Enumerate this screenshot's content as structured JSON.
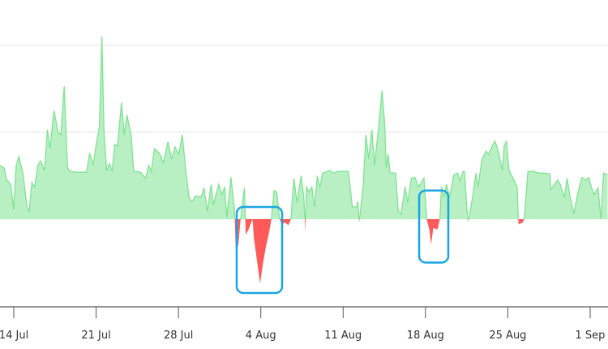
{
  "chart_data": {
    "type": "area",
    "title": "",
    "xlabel": "",
    "ylabel": "",
    "x_unit": "days since 14 Jul",
    "xlim": [
      -1.17,
      50.5
    ],
    "ylim": [
      -101,
      252
    ],
    "gridlines_y": [
      100,
      200
    ],
    "grid": true,
    "x_ticks": [
      {
        "day": 0,
        "label": "14 Jul"
      },
      {
        "day": 7,
        "label": "21 Jul"
      },
      {
        "day": 14,
        "label": "28 Jul"
      },
      {
        "day": 21,
        "label": "4 Aug"
      },
      {
        "day": 28,
        "label": "11 Aug"
      },
      {
        "day": 35,
        "label": "18 Aug"
      },
      {
        "day": 42,
        "label": "25 Aug"
      },
      {
        "day": 49,
        "label": "1 Sep"
      }
    ],
    "colors": {
      "positive_fill": "#b9f0c3",
      "positive_line": "#7fe393",
      "negative_fill": "#ff5a5a",
      "highlight": "#1ba6e3",
      "axis": "#555555",
      "grid": "#e3e3e3"
    },
    "series": [
      {
        "name": "value",
        "points": [
          [
            -1.17,
            62
          ],
          [
            -0.83,
            59
          ],
          [
            -0.6,
            45
          ],
          [
            -0.25,
            40
          ],
          [
            -0.02,
            11
          ],
          [
            0.21,
            62
          ],
          [
            0.43,
            72
          ],
          [
            0.78,
            53
          ],
          [
            1.12,
            14
          ],
          [
            1.31,
            9
          ],
          [
            1.54,
            42
          ],
          [
            1.77,
            37
          ],
          [
            2.05,
            62
          ],
          [
            2.27,
            67
          ],
          [
            2.62,
            56
          ],
          [
            2.85,
            103
          ],
          [
            3.08,
            81
          ],
          [
            3.42,
            125
          ],
          [
            3.77,
            100
          ],
          [
            4.0,
            97
          ],
          [
            4.29,
            153
          ],
          [
            4.57,
            59
          ],
          [
            4.8,
            55
          ],
          [
            5.26,
            54
          ],
          [
            6.18,
            54
          ],
          [
            6.45,
            76
          ],
          [
            6.75,
            62
          ],
          [
            7.05,
            90
          ],
          [
            7.28,
            106
          ],
          [
            7.49,
            210
          ],
          [
            7.67,
            100
          ],
          [
            7.9,
            56
          ],
          [
            8.13,
            64
          ],
          [
            8.36,
            55
          ],
          [
            8.59,
            86
          ],
          [
            8.82,
            84
          ],
          [
            9.16,
            134
          ],
          [
            9.39,
            97
          ],
          [
            9.62,
            120
          ],
          [
            9.97,
            97
          ],
          [
            10.19,
            55
          ],
          [
            10.77,
            54
          ],
          [
            11.23,
            47
          ],
          [
            11.46,
            62
          ],
          [
            11.69,
            55
          ],
          [
            11.96,
            81
          ],
          [
            12.38,
            76
          ],
          [
            12.72,
            65
          ],
          [
            13.11,
            89
          ],
          [
            13.41,
            69
          ],
          [
            13.71,
            83
          ],
          [
            14.03,
            75
          ],
          [
            14.33,
            97
          ],
          [
            14.62,
            56
          ],
          [
            14.9,
            25
          ],
          [
            15.13,
            20
          ],
          [
            15.48,
            27
          ],
          [
            15.93,
            25
          ],
          [
            16.16,
            36
          ],
          [
            16.46,
            9
          ],
          [
            16.78,
            40
          ],
          [
            16.96,
            16
          ],
          [
            17.42,
            40
          ],
          [
            17.7,
            28
          ],
          [
            17.93,
            37
          ],
          [
            18.11,
            2
          ],
          [
            18.46,
            48
          ],
          [
            18.75,
            12
          ],
          [
            18.87,
            -34
          ],
          [
            19.08,
            -30
          ],
          [
            19.28,
            0
          ],
          [
            19.61,
            36
          ],
          [
            19.72,
            -18
          ],
          [
            19.95,
            -12
          ],
          [
            20.3,
            0
          ],
          [
            20.41,
            -21
          ],
          [
            20.94,
            -74
          ],
          [
            21.21,
            -49
          ],
          [
            21.44,
            -31
          ],
          [
            21.67,
            -18
          ],
          [
            21.9,
            0
          ],
          [
            22.13,
            33
          ],
          [
            22.36,
            31
          ],
          [
            22.59,
            0
          ],
          [
            22.8,
            -6
          ],
          [
            23.07,
            -4
          ],
          [
            23.35,
            -7
          ],
          [
            23.56,
            0
          ],
          [
            23.81,
            47
          ],
          [
            24.08,
            19
          ],
          [
            24.43,
            50
          ],
          [
            24.66,
            25
          ],
          [
            24.79,
            -15
          ],
          [
            24.88,
            37
          ],
          [
            25.12,
            31
          ],
          [
            25.34,
            37
          ],
          [
            25.57,
            14
          ],
          [
            25.8,
            50
          ],
          [
            26.03,
            37
          ],
          [
            26.26,
            53
          ],
          [
            26.84,
            56
          ],
          [
            27.18,
            53
          ],
          [
            27.53,
            55
          ],
          [
            28.44,
            55
          ],
          [
            28.79,
            14
          ],
          [
            29.13,
            14
          ],
          [
            29.25,
            20
          ],
          [
            29.36,
            -4
          ],
          [
            29.7,
            37
          ],
          [
            29.94,
            97
          ],
          [
            30.17,
            69
          ],
          [
            30.44,
            103
          ],
          [
            30.67,
            62
          ],
          [
            30.97,
            100
          ],
          [
            31.31,
            148
          ],
          [
            31.54,
            109
          ],
          [
            31.66,
            59
          ],
          [
            31.82,
            75
          ],
          [
            32.0,
            53
          ],
          [
            32.46,
            53
          ],
          [
            32.69,
            9
          ],
          [
            32.92,
            6
          ],
          [
            33.27,
            37
          ],
          [
            33.49,
            19
          ],
          [
            33.8,
            47
          ],
          [
            34.11,
            48
          ],
          [
            34.41,
            37
          ],
          [
            34.87,
            47
          ],
          [
            35.1,
            0
          ],
          [
            35.33,
            -12
          ],
          [
            35.47,
            -29
          ],
          [
            35.67,
            -10
          ],
          [
            36.02,
            -12
          ],
          [
            36.22,
            0
          ],
          [
            36.36,
            37
          ],
          [
            36.59,
            25
          ],
          [
            36.78,
            40
          ],
          [
            37.05,
            25
          ],
          [
            37.4,
            51
          ],
          [
            37.74,
            53
          ],
          [
            37.93,
            44
          ],
          [
            38.2,
            55
          ],
          [
            38.31,
            55
          ],
          [
            38.55,
            6
          ],
          [
            38.64,
            -3
          ],
          [
            39.0,
            25
          ],
          [
            39.3,
            53
          ],
          [
            39.46,
            37
          ],
          [
            39.81,
            69
          ],
          [
            40.15,
            78
          ],
          [
            40.38,
            75
          ],
          [
            40.66,
            84
          ],
          [
            40.91,
            90
          ],
          [
            41.19,
            78
          ],
          [
            41.53,
            56
          ],
          [
            41.69,
            84
          ],
          [
            41.88,
            90
          ],
          [
            42.1,
            56
          ],
          [
            42.45,
            47
          ],
          [
            42.79,
            37
          ],
          [
            42.91,
            -6
          ],
          [
            43.25,
            -4
          ],
          [
            43.39,
            0
          ],
          [
            43.71,
            55
          ],
          [
            44.17,
            55
          ],
          [
            44.63,
            53
          ],
          [
            45.09,
            53
          ],
          [
            45.59,
            52
          ],
          [
            45.66,
            34
          ],
          [
            46.23,
            45
          ],
          [
            46.46,
            40
          ],
          [
            46.81,
            25
          ],
          [
            47.04,
            47
          ],
          [
            47.26,
            28
          ],
          [
            47.61,
            6
          ],
          [
            47.95,
            30
          ],
          [
            48.3,
            48
          ],
          [
            48.64,
            45
          ],
          [
            48.88,
            48
          ],
          [
            49.1,
            37
          ],
          [
            49.33,
            28
          ],
          [
            49.67,
            36
          ],
          [
            49.91,
            0
          ],
          [
            50.14,
            53
          ],
          [
            50.48,
            51
          ]
        ]
      }
    ],
    "annotations": [
      {
        "type": "highlight-box",
        "day_range": [
          18.95,
          22.81
        ],
        "value_range": [
          -85,
          14
        ]
      },
      {
        "type": "highlight-box",
        "day_range": [
          34.46,
          36.94
        ],
        "value_range": [
          -50,
          33
        ]
      }
    ]
  }
}
